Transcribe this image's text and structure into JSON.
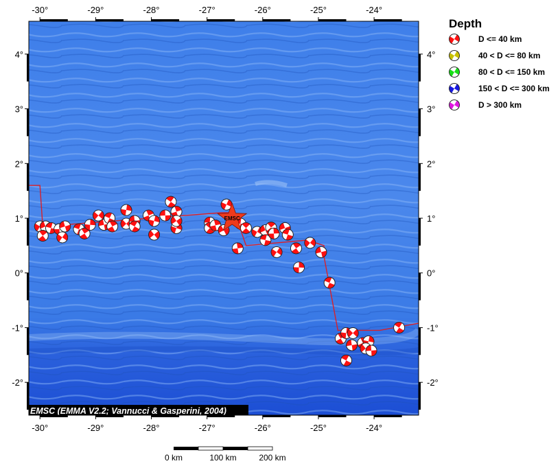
{
  "map": {
    "lon_range": [
      -30.2,
      -23.2
    ],
    "lat_range": [
      -2.6,
      4.6
    ],
    "top_x_ticks": [
      "-30°",
      "-29°",
      "-28°",
      "-27°",
      "-26°",
      "-25°",
      "-24°"
    ],
    "bottom_x_ticks": [
      "-30°",
      "-29°",
      "-28°",
      "-27°",
      "-26°",
      "-25°",
      "-24°"
    ],
    "left_y_ticks": [
      "4°",
      "3°",
      "2°",
      "1°",
      "0°",
      "-1°",
      "-2°"
    ],
    "right_y_ticks": [
      "4°",
      "3°",
      "2°",
      "1°",
      "0°",
      "-1°",
      "-2°"
    ],
    "ocean_color": "#2f6fe0",
    "plate_boundary_color": "#d8202a",
    "credit": "EMSC (EMMA V2.2; Vannucci & Gasperini, 2004)",
    "epicenter": {
      "label": "EMSC",
      "lon": -26.55,
      "lat": 1.0,
      "color": "#ee3a1c"
    },
    "plate_boundary": [
      [
        -30.2,
        1.6
      ],
      [
        -30.0,
        1.6
      ],
      [
        -29.95,
        0.85
      ],
      [
        -26.75,
        1.1
      ],
      [
        -26.5,
        1.1
      ],
      [
        -26.4,
        0.8
      ],
      [
        -26.3,
        0.5
      ],
      [
        -25.2,
        0.6
      ],
      [
        -24.9,
        0.5
      ],
      [
        -24.9,
        0.3
      ],
      [
        -24.65,
        -1.05
      ],
      [
        -24.3,
        -1.05
      ],
      [
        -23.9,
        -1.05
      ],
      [
        -23.2,
        -0.92
      ]
    ],
    "focal_mechanisms": [
      {
        "lon": -30.0,
        "lat": 0.85
      },
      {
        "lon": -29.9,
        "lat": 0.85
      },
      {
        "lon": -29.8,
        "lat": 0.82
      },
      {
        "lon": -29.95,
        "lat": 0.68
      },
      {
        "lon": -29.65,
        "lat": 0.8
      },
      {
        "lon": -29.6,
        "lat": 0.65
      },
      {
        "lon": -29.55,
        "lat": 0.85
      },
      {
        "lon": -29.3,
        "lat": 0.8
      },
      {
        "lon": -29.2,
        "lat": 0.72
      },
      {
        "lon": -29.1,
        "lat": 0.88
      },
      {
        "lon": -28.95,
        "lat": 1.05
      },
      {
        "lon": -28.85,
        "lat": 0.88
      },
      {
        "lon": -28.75,
        "lat": 1.0
      },
      {
        "lon": -28.7,
        "lat": 0.85
      },
      {
        "lon": -28.45,
        "lat": 1.15
      },
      {
        "lon": -28.45,
        "lat": 0.9
      },
      {
        "lon": -28.3,
        "lat": 0.95
      },
      {
        "lon": -28.3,
        "lat": 0.85
      },
      {
        "lon": -28.05,
        "lat": 1.05
      },
      {
        "lon": -27.95,
        "lat": 0.95
      },
      {
        "lon": -27.95,
        "lat": 0.7
      },
      {
        "lon": -27.75,
        "lat": 1.05
      },
      {
        "lon": -27.65,
        "lat": 1.3
      },
      {
        "lon": -27.55,
        "lat": 1.12
      },
      {
        "lon": -27.55,
        "lat": 0.82
      },
      {
        "lon": -27.55,
        "lat": 0.95
      },
      {
        "lon": -26.95,
        "lat": 0.92
      },
      {
        "lon": -26.95,
        "lat": 0.82
      },
      {
        "lon": -26.85,
        "lat": 0.87
      },
      {
        "lon": -26.65,
        "lat": 1.25
      },
      {
        "lon": -26.7,
        "lat": 0.78
      },
      {
        "lon": -26.4,
        "lat": 0.9
      },
      {
        "lon": -26.3,
        "lat": 0.82
      },
      {
        "lon": -26.45,
        "lat": 0.45
      },
      {
        "lon": -26.1,
        "lat": 0.75
      },
      {
        "lon": -25.95,
        "lat": 0.78
      },
      {
        "lon": -25.95,
        "lat": 0.6
      },
      {
        "lon": -25.85,
        "lat": 0.83
      },
      {
        "lon": -25.8,
        "lat": 0.72
      },
      {
        "lon": -25.75,
        "lat": 0.38
      },
      {
        "lon": -25.6,
        "lat": 0.82
      },
      {
        "lon": -25.55,
        "lat": 0.7
      },
      {
        "lon": -25.4,
        "lat": 0.45
      },
      {
        "lon": -25.35,
        "lat": 0.1
      },
      {
        "lon": -25.15,
        "lat": 0.55
      },
      {
        "lon": -24.95,
        "lat": 0.38
      },
      {
        "lon": -24.8,
        "lat": -0.18
      },
      {
        "lon": -24.6,
        "lat": -1.2
      },
      {
        "lon": -24.5,
        "lat": -1.1
      },
      {
        "lon": -24.38,
        "lat": -1.1
      },
      {
        "lon": -24.4,
        "lat": -1.32
      },
      {
        "lon": -24.5,
        "lat": -1.6
      },
      {
        "lon": -24.2,
        "lat": -1.28
      },
      {
        "lon": -24.1,
        "lat": -1.25
      },
      {
        "lon": -24.15,
        "lat": -1.38
      },
      {
        "lon": -24.05,
        "lat": -1.42
      },
      {
        "lon": -23.55,
        "lat": -1.0
      }
    ]
  },
  "legend": {
    "title": "Depth",
    "items": [
      {
        "label": "D <= 40 km",
        "color": "#ff1010"
      },
      {
        "label": "40 < D <= 80 km",
        "color": "#c8c000"
      },
      {
        "label": "80 < D <= 150 km",
        "color": "#18e018"
      },
      {
        "label": "150 < D <= 300 km",
        "color": "#1818e0"
      },
      {
        "label": "D > 300 km",
        "color": "#e018e0"
      }
    ]
  },
  "scale_bar": {
    "labels": [
      "0 km",
      "100 km",
      "200 km"
    ]
  }
}
